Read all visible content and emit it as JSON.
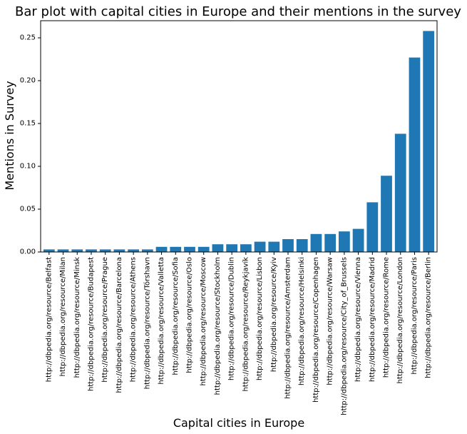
{
  "chart_data": {
    "type": "bar",
    "title": "Bar plot with capital cities in Europe and their mentions in the survey",
    "xlabel": "Capital cities in Europe",
    "ylabel": "Mentions in Survey",
    "ylim": [
      0,
      0.27
    ],
    "yticks": [
      0.0,
      0.05,
      0.1,
      0.15,
      0.2,
      0.25
    ],
    "ytick_labels": [
      "0.00",
      "0.05",
      "0.10",
      "0.15",
      "0.20",
      "0.25"
    ],
    "bar_color": "#1f77b4",
    "grid": false,
    "categories": [
      "http://dbpedia.org/resource/Belfast",
      "http://dbpedia.org/resource/Milan",
      "http://dbpedia.org/resource/Minsk",
      "http://dbpedia.org/resource/Budapest",
      "http://dbpedia.org/resource/Prague",
      "http://dbpedia.org/resource/Barcelona",
      "http://dbpedia.org/resource/Athens",
      "http://dbpedia.org/resource/Tórshavn",
      "http://dbpedia.org/resource/Valletta",
      "http://dbpedia.org/resource/Sofia",
      "http://dbpedia.org/resource/Oslo",
      "http://dbpedia.org/resource/Moscow",
      "http://dbpedia.org/resource/Stockholm",
      "http://dbpedia.org/resource/Dublin",
      "http://dbpedia.org/resource/Reykjavík",
      "http://dbpedia.org/resource/Lisbon",
      "http://dbpedia.org/resource/Kyiv",
      "http://dbpedia.org/resource/Amsterdam",
      "http://dbpedia.org/resource/Helsinki",
      "http://dbpedia.org/resource/Copenhagen",
      "http://dbpedia.org/resource/Warsaw",
      "http://dbpedia.org/resource/City_of_Brussels",
      "http://dbpedia.org/resource/Vienna",
      "http://dbpedia.org/resource/Madrid",
      "http://dbpedia.org/resource/Rome",
      "http://dbpedia.org/resource/London",
      "http://dbpedia.org/resource/Paris",
      "http://dbpedia.org/resource/Berlin"
    ],
    "values": [
      0.003,
      0.003,
      0.003,
      0.003,
      0.003,
      0.003,
      0.003,
      0.003,
      0.006,
      0.006,
      0.006,
      0.006,
      0.009,
      0.009,
      0.009,
      0.012,
      0.012,
      0.015,
      0.015,
      0.021,
      0.021,
      0.024,
      0.027,
      0.058,
      0.089,
      0.138,
      0.227,
      0.258
    ]
  }
}
